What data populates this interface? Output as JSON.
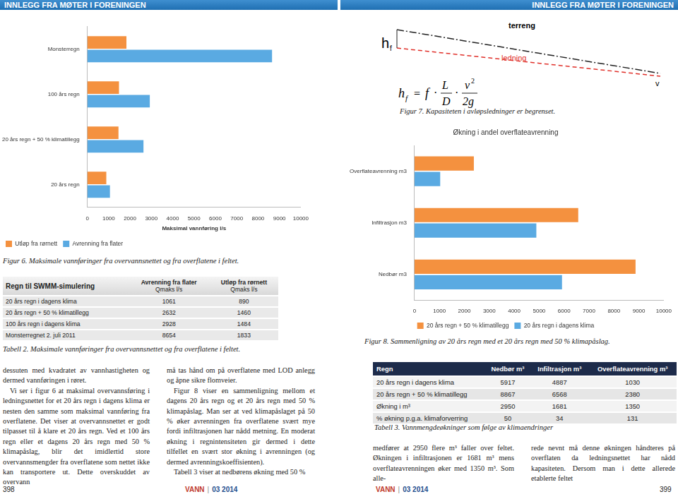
{
  "header": {
    "left": "INNLEGG FRA MØTER I FORENINGEN",
    "right": "INNLEGG FRA MØTER I FORENINGEN"
  },
  "chart_data": [
    {
      "type": "bar",
      "orientation": "horizontal",
      "categories": [
        "Monsterregn",
        "100 års regn",
        "20 års regn + 50 % klimatillegg",
        "20 års regn"
      ],
      "series": [
        {
          "name": "Utløp fra rørnett",
          "color": "#f4913f",
          "values": [
            1833,
            1484,
            1460,
            890
          ]
        },
        {
          "name": "Avrenning fra flater",
          "color": "#5aaae2",
          "values": [
            8654,
            2928,
            2632,
            1061
          ]
        }
      ],
      "x_label": "Maksimal vannføring l/s",
      "xlim": [
        0,
        10000
      ],
      "xticks": [
        0,
        1000,
        2000,
        3000,
        4000,
        5000,
        6000,
        7000,
        8000,
        9000,
        10000
      ],
      "grid": false,
      "legend": "bottom left",
      "caption": "Figur 6. Maksimale vannføringer fra overvannsnettet og fra overflatene i feltet."
    },
    {
      "type": "bar",
      "orientation": "horizontal",
      "title": "Økning i andel overflateavrenning",
      "categories": [
        "Overflateavrenning m3",
        "Infiltrasjon m3",
        "Nedbør m3"
      ],
      "series": [
        {
          "name": "20 års regn + 50 % klimatillegg",
          "color": "#f4913f",
          "values": [
            2380,
            6568,
            8867
          ]
        },
        {
          "name": "20 års regn i dagens klima",
          "color": "#5aaae2",
          "values": [
            1030,
            4887,
            5917
          ]
        }
      ],
      "xlim": [
        0,
        10000
      ],
      "xticks": [
        0,
        1000,
        2000,
        3000,
        4000,
        5000,
        6000,
        7000,
        8000,
        9000,
        10000
      ],
      "grid": false,
      "legend": "bottom",
      "caption": "Figur 8. Sammenligning av 20 års regn med et 20 års regn med 50 % klimapåslag."
    }
  ],
  "figure7": {
    "h": "h",
    "h_sub": "f",
    "terrain": "terreng",
    "pipe": "ledning",
    "velocity": "v",
    "formula": {
      "lhs": "h",
      "lhs_sub": "f",
      "equals": "=",
      "factor": "f",
      "dot": "·",
      "num1": "L",
      "den1": "D",
      "num2": "v",
      "num2_exp": "2",
      "den2": "2g"
    },
    "caption": "Figur 7. Kapasiteten i avløpsledninger er begrenset."
  },
  "table2": {
    "columns": [
      {
        "title": "Regn til SWMM-simulering"
      },
      {
        "title": "Avrenning fra flater",
        "unit": "Qmaks l/s"
      },
      {
        "title": "Utløp fra rørnett",
        "unit": "Qmaks l/s"
      }
    ],
    "rows": [
      [
        "20 års regn i dagens klima",
        1061,
        890
      ],
      [
        "20 års regn + 50 % klimatillegg",
        2632,
        1460
      ],
      [
        "100 års regn i dagens klima",
        2928,
        1484
      ],
      [
        "Monsterregnet 2. juli 2011",
        8654,
        1833
      ]
    ],
    "caption": "Tabell 2. Maksimale vannføringer fra overvannsnettet og fra overflatene i feltet."
  },
  "table3": {
    "columns": [
      "Regn",
      "Nedbør m³",
      "Infiltrasjon m³",
      "Overflateavrenning m³"
    ],
    "rows": [
      [
        "20 års regn i dagens klima",
        5917,
        4887,
        1030
      ],
      [
        "20 års regn + 50 % klimatillegg",
        8867,
        6568,
        2380
      ],
      [
        "Økning i m³",
        2950,
        1681,
        1350
      ],
      [
        "% økning p.g.a. klimaforverring",
        50,
        34,
        131
      ]
    ],
    "caption": "Tabell 3. Vannmengdeøkninger som følge av klimaendringer"
  },
  "text": {
    "left_page": [
      [
        "dessuten med kvadratet av vannhastigheten og dermed vannføringen i røret.",
        "Vi ser i figur 6 at maksimal overvannsføring i ledningsnettet for et 20 års regn i dagens klima er nesten den samme som maksimal vannføring fra overflatene. Det viser at overvannsnettet er godt tilpasset til å klare et 20 års regn. Ved et 100 års regn eller et dagens 20 års regn med 50 % klimapåslag, blir det imidlertid store overvannsmengder fra overflatene som nettet ikke kan transportere ut. Dette overskuddet av overvann"
      ],
      [
        "må tas hånd om på overflatene med LOD anlegg og åpne sikre flomveier.",
        "Figur 8 viser en sammenligning mellom et dagens 20 års regn og et 20 års regn med 50 % klimapåslag. Man ser at ved klimapåslaget på 50 % øker avrenningen fra overflatene svært mye fordi infiltrasjonen har nådd metning. En moderat økning i regnintensiteten gir dermed i dette tilfellet en svært stor økning i avrenningen (og dermed avrenningskoeffisienten).",
        "Tabell 3 viser at nedbørens økning med 50 %"
      ]
    ],
    "right_page": [
      [
        "medfører at 2950 flere m³ faller over feltet. Økningen i infiltrasjonen er 1681 m³ mens overflateavrenningen øker med 1350 m³. Som alle-"
      ],
      [
        "rede nevnt må denne økningen håndteres på overflaten da ledningsnettet har nådd kapasiteten. Dersom man i dette allerede etablerte feltet"
      ]
    ]
  },
  "footer": {
    "left_page_number": "398",
    "right_page_number": "399",
    "magazine": "VANN",
    "separator": "|",
    "issue": "03 2014"
  }
}
